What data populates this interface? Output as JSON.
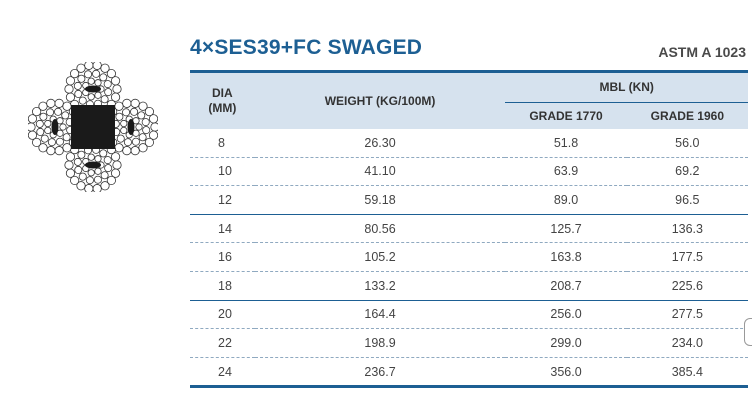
{
  "header": {
    "title": "4×SES39+FC SWAGED",
    "standard": "ASTM A 1023"
  },
  "table": {
    "col_dia": "DIA",
    "col_dia_unit": "(MM)",
    "col_weight": "WEIGHT (KG/100M)",
    "col_mbl": "MBL (KN)",
    "col_grade1": "GRADE 1770",
    "col_grade2": "GRADE 1960",
    "rows": [
      {
        "dia": "8",
        "weight": "26.30",
        "g1770": "51.8",
        "g1960": "56.0"
      },
      {
        "dia": "10",
        "weight": "41.10",
        "g1770": "63.9",
        "g1960": "69.2"
      },
      {
        "dia": "12",
        "weight": "59.18",
        "g1770": "89.0",
        "g1960": "96.5"
      },
      {
        "dia": "14",
        "weight": "80.56",
        "g1770": "125.7",
        "g1960": "136.3"
      },
      {
        "dia": "16",
        "weight": "105.2",
        "g1770": "163.8",
        "g1960": "177.5"
      },
      {
        "dia": "18",
        "weight": "133.2",
        "g1770": "208.7",
        "g1960": "225.6"
      },
      {
        "dia": "20",
        "weight": "164.4",
        "g1770": "256.0",
        "g1960": "277.5"
      },
      {
        "dia": "22",
        "weight": "198.9",
        "g1770": "299.0",
        "g1960": "234.0"
      },
      {
        "dia": "24",
        "weight": "236.7",
        "g1770": "356.0",
        "g1960": "385.4"
      }
    ]
  },
  "colors": {
    "accent": "#1d5f93",
    "header_bg": "#d6e2ee"
  }
}
